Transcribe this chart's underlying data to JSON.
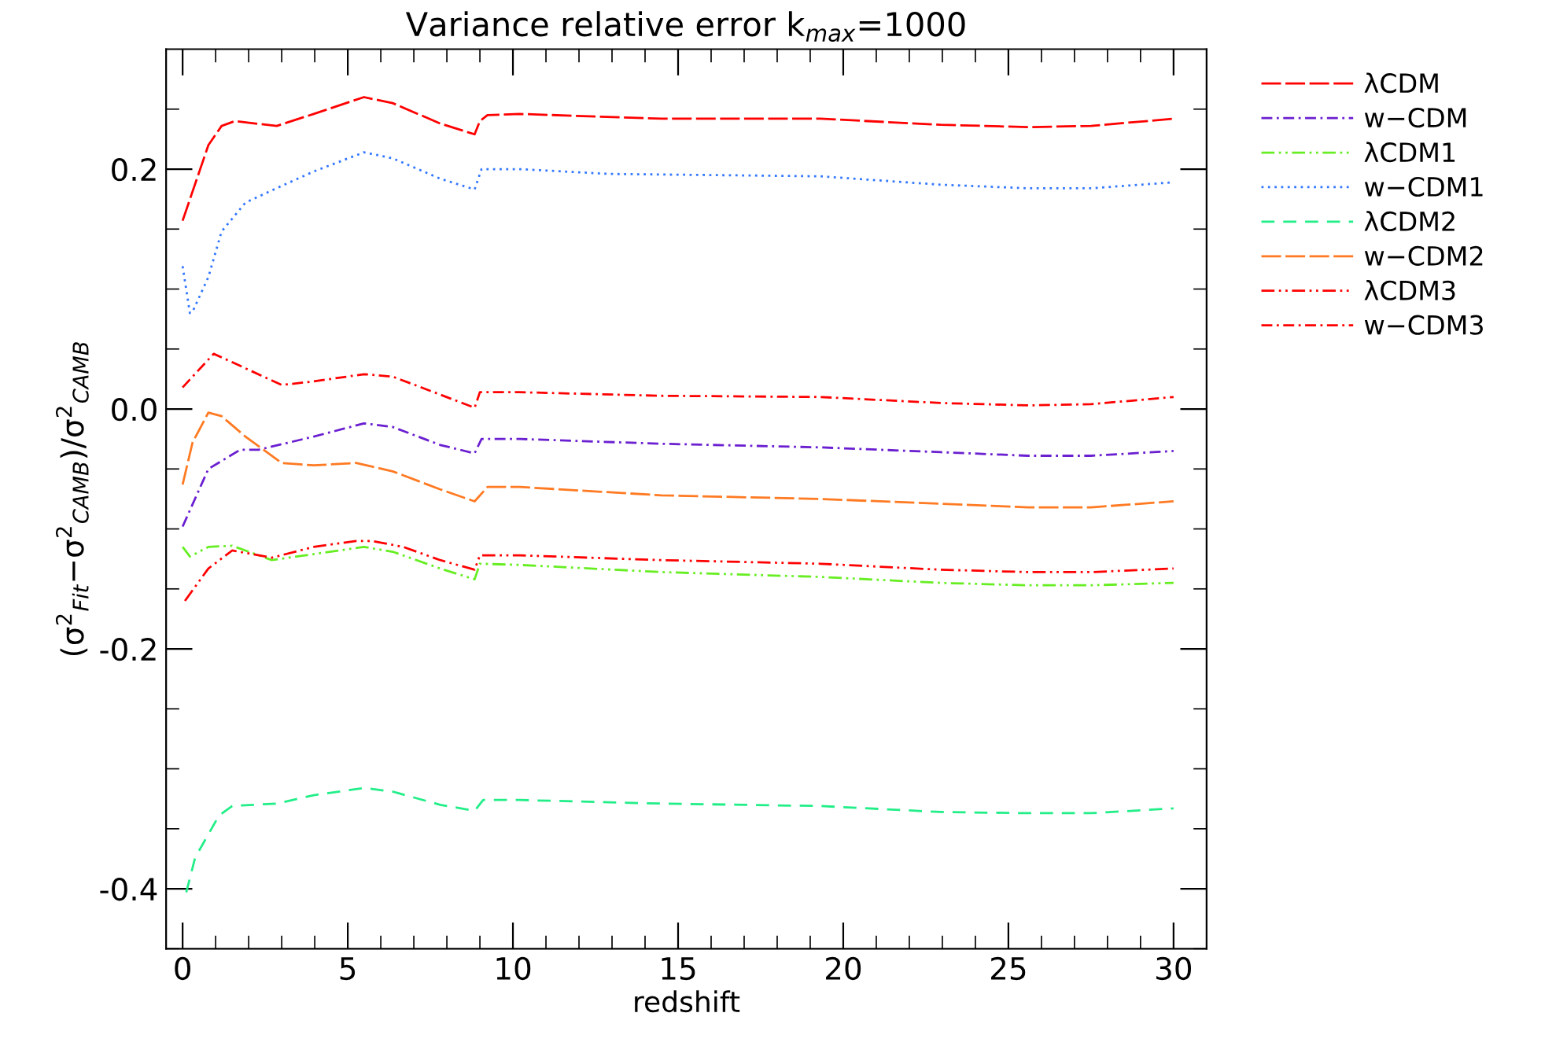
{
  "chart_data": {
    "type": "line",
    "title": "Variance relative error k$_{max}$=1000",
    "xlabel": "redshift",
    "ylabel": "(σ$^{2}$$_{Fit}$−σ$^{2}$$_{CAMB}$)/σ$^{2}$$_{CAMB}$",
    "xlim": [
      -0.5,
      31
    ],
    "ylim": [
      -0.45,
      0.3
    ],
    "xticks": [
      0,
      {
        "value": 1,
        "label": null
      },
      {
        "value": 2,
        "label": null
      },
      {
        "value": 3,
        "label": null
      },
      {
        "value": 4,
        "label": null
      },
      5,
      {
        "value": 6,
        "label": null
      },
      {
        "value": 7,
        "label": null
      },
      {
        "value": 8,
        "label": null
      },
      {
        "value": 9,
        "label": null
      },
      10,
      {
        "value": 11,
        "label": null
      },
      {
        "value": 12,
        "label": null
      },
      {
        "value": 13,
        "label": null
      },
      {
        "value": 14,
        "label": null
      },
      15,
      {
        "value": 16,
        "label": null
      },
      {
        "value": 17,
        "label": null
      },
      {
        "value": 18,
        "label": null
      },
      {
        "value": 19,
        "label": null
      },
      20,
      {
        "value": 21,
        "label": null
      },
      {
        "value": 22,
        "label": null
      },
      {
        "value": 23,
        "label": null
      },
      {
        "value": 24,
        "label": null
      },
      25,
      {
        "value": 26,
        "label": null
      },
      {
        "value": 27,
        "label": null
      },
      {
        "value": 28,
        "label": null
      },
      {
        "value": 29,
        "label": null
      },
      30
    ],
    "yticks": [
      {
        "value": -0.45,
        "label": null
      },
      -0.4,
      {
        "value": -0.35,
        "label": null
      },
      {
        "value": -0.3,
        "label": null
      },
      {
        "value": -0.25,
        "label": null
      },
      -0.2,
      {
        "value": -0.15,
        "label": null
      },
      {
        "value": -0.1,
        "label": null
      },
      {
        "value": -0.05,
        "label": null
      },
      {
        "value": 0.0,
        "label": "0.0"
      },
      {
        "value": 0.05,
        "label": null
      },
      {
        "value": 0.1,
        "label": null
      },
      {
        "value": 0.15,
        "label": null
      },
      0.2,
      {
        "value": 0.25,
        "label": null
      }
    ],
    "grid": false,
    "legend": "top right",
    "series": [
      {
        "name": "λCDM",
        "color": "#ff0000",
        "line_style": "longdash",
        "x": [
          0,
          0.78,
          1.18,
          1.58,
          2.85,
          3.97,
          5.49,
          6.36,
          7.8,
          8.84,
          9.0,
          9.23,
          10.2,
          14.5,
          19.3,
          22.95,
          25.6,
          27.5,
          30
        ],
        "values": [
          0.157,
          0.22,
          0.236,
          0.24,
          0.236,
          0.246,
          0.26,
          0.255,
          0.238,
          0.229,
          0.24,
          0.245,
          0.246,
          0.242,
          0.242,
          0.237,
          0.235,
          0.236,
          0.242
        ]
      },
      {
        "name": "w−CDM",
        "color": "#6a1fd0",
        "line_style": "dashdot",
        "x": [
          0,
          0.78,
          1.74,
          2.3,
          3.97,
          5.49,
          6.36,
          7.8,
          8.84,
          9.05,
          10.2,
          14.5,
          19.3,
          22.95,
          25.6,
          27.5,
          30
        ],
        "values": [
          -0.098,
          -0.05,
          -0.034,
          -0.034,
          -0.023,
          -0.012,
          -0.015,
          -0.03,
          -0.037,
          -0.025,
          -0.025,
          -0.029,
          -0.032,
          -0.036,
          -0.039,
          -0.039,
          -0.035
        ]
      },
      {
        "name": "λCDM1",
        "color": "#66ee22",
        "line_style": "dashdotdot",
        "x": [
          0,
          0.22,
          0.78,
          1.5,
          2.7,
          3.97,
          5.49,
          6.36,
          7.8,
          8.84,
          9.0,
          10.2,
          14.5,
          19.3,
          22.95,
          25.6,
          27.5,
          30
        ],
        "values": [
          -0.115,
          -0.123,
          -0.115,
          -0.114,
          -0.126,
          -0.121,
          -0.115,
          -0.119,
          -0.133,
          -0.142,
          -0.129,
          -0.13,
          -0.136,
          -0.14,
          -0.145,
          -0.147,
          -0.147,
          -0.145
        ]
      },
      {
        "name": "w−CDM1",
        "color": "#3377ff",
        "line_style": "dotted",
        "x": [
          0,
          0.22,
          0.3,
          0.78,
          1.18,
          1.9,
          3.0,
          3.97,
          5.49,
          6.36,
          7.8,
          8.84,
          9.05,
          10.2,
          12.9,
          19.3,
          22.95,
          25.6,
          27.5,
          30
        ],
        "values": [
          0.119,
          0.08,
          0.081,
          0.11,
          0.148,
          0.172,
          0.186,
          0.198,
          0.214,
          0.209,
          0.192,
          0.183,
          0.2,
          0.2,
          0.196,
          0.194,
          0.187,
          0.184,
          0.184,
          0.189
        ]
      },
      {
        "name": "λCDM2",
        "color": "#22ee88",
        "line_style": "dashed",
        "x": [
          0.11,
          0.38,
          1.1,
          1.5,
          2.85,
          3.97,
          5.49,
          6.36,
          7.8,
          8.84,
          9.1,
          10.2,
          14.5,
          19.3,
          22.95,
          25.6,
          27.5,
          30
        ],
        "values": [
          -0.403,
          -0.374,
          -0.339,
          -0.331,
          -0.329,
          -0.322,
          -0.316,
          -0.319,
          -0.33,
          -0.335,
          -0.326,
          -0.326,
          -0.329,
          -0.331,
          -0.336,
          -0.337,
          -0.337,
          -0.333
        ]
      },
      {
        "name": "w−CDM2",
        "color": "#ff7a22",
        "line_style": "longdash",
        "x": [
          0,
          0.3,
          0.78,
          1.18,
          1.9,
          3.0,
          3.97,
          5.25,
          6.36,
          7.8,
          8.84,
          9.23,
          10.2,
          14.5,
          19.3,
          22.95,
          25.6,
          27.5,
          30
        ],
        "values": [
          -0.063,
          -0.028,
          -0.003,
          -0.006,
          -0.023,
          -0.045,
          -0.047,
          -0.045,
          -0.052,
          -0.067,
          -0.077,
          -0.065,
          -0.065,
          -0.072,
          -0.075,
          -0.079,
          -0.082,
          -0.082,
          -0.077
        ]
      },
      {
        "name": "λCDM3",
        "color": "#ff0000",
        "line_style": "dashdotdot",
        "x": [
          0.07,
          0.78,
          1.5,
          2.7,
          3.97,
          5.25,
          5.73,
          6.68,
          7.8,
          8.84,
          9.0,
          10.2,
          14.5,
          19.3,
          22.95,
          25.6,
          27.5,
          30
        ],
        "values": [
          -0.16,
          -0.133,
          -0.118,
          -0.124,
          -0.115,
          -0.11,
          -0.11,
          -0.115,
          -0.126,
          -0.134,
          -0.122,
          -0.122,
          -0.126,
          -0.129,
          -0.134,
          -0.136,
          -0.136,
          -0.133
        ]
      },
      {
        "name": "w−CDM3",
        "color": "#ff0000",
        "line_style": "dashdot",
        "x": [
          0,
          0.94,
          1.58,
          3.0,
          3.97,
          5.49,
          6.36,
          7.8,
          8.84,
          9.0,
          10.2,
          14.5,
          19.3,
          22.95,
          25.6,
          27.5,
          30
        ],
        "values": [
          0.018,
          0.046,
          0.038,
          0.02,
          0.023,
          0.029,
          0.027,
          0.012,
          0.001,
          0.014,
          0.014,
          0.011,
          0.01,
          0.005,
          0.003,
          0.004,
          0.01
        ]
      }
    ]
  }
}
